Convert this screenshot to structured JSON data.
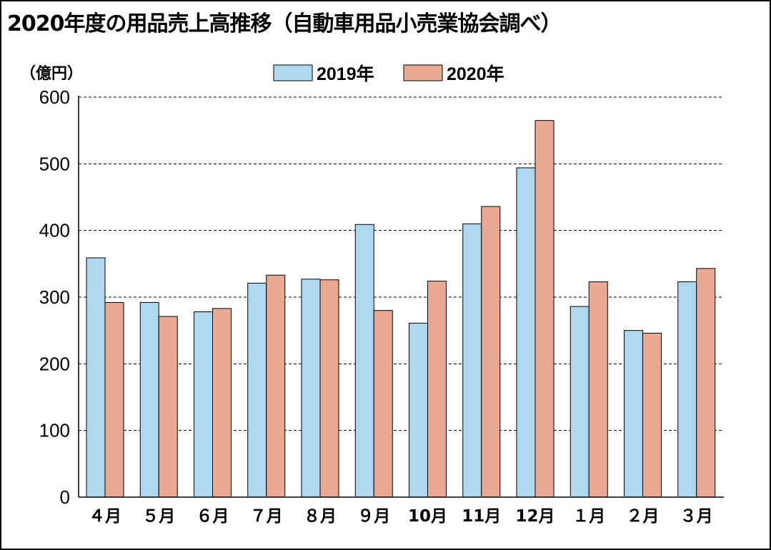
{
  "chart_data": {
    "type": "bar",
    "title": "2020年度の用品売上高推移（自動車用品小売業協会調べ）",
    "ylabel": "（億円）",
    "xlabel": "",
    "ylim": [
      0,
      600
    ],
    "yticks": [
      0,
      100,
      200,
      300,
      400,
      500,
      600
    ],
    "grid": true,
    "legend_position": "top-center",
    "categories": [
      "４月",
      "５月",
      "６月",
      "７月",
      "８月",
      "９月",
      "10月",
      "11月",
      "12月",
      "１月",
      "２月",
      "３月"
    ],
    "series": [
      {
        "name": "2019年",
        "color": "#add8ef",
        "values": [
          359,
          292,
          278,
          321,
          327,
          409,
          261,
          410,
          494,
          286,
          250,
          323
        ]
      },
      {
        "name": "2020年",
        "color": "#e9a993",
        "values": [
          292,
          271,
          283,
          333,
          326,
          280,
          324,
          436,
          565,
          323,
          246,
          343
        ]
      }
    ]
  }
}
